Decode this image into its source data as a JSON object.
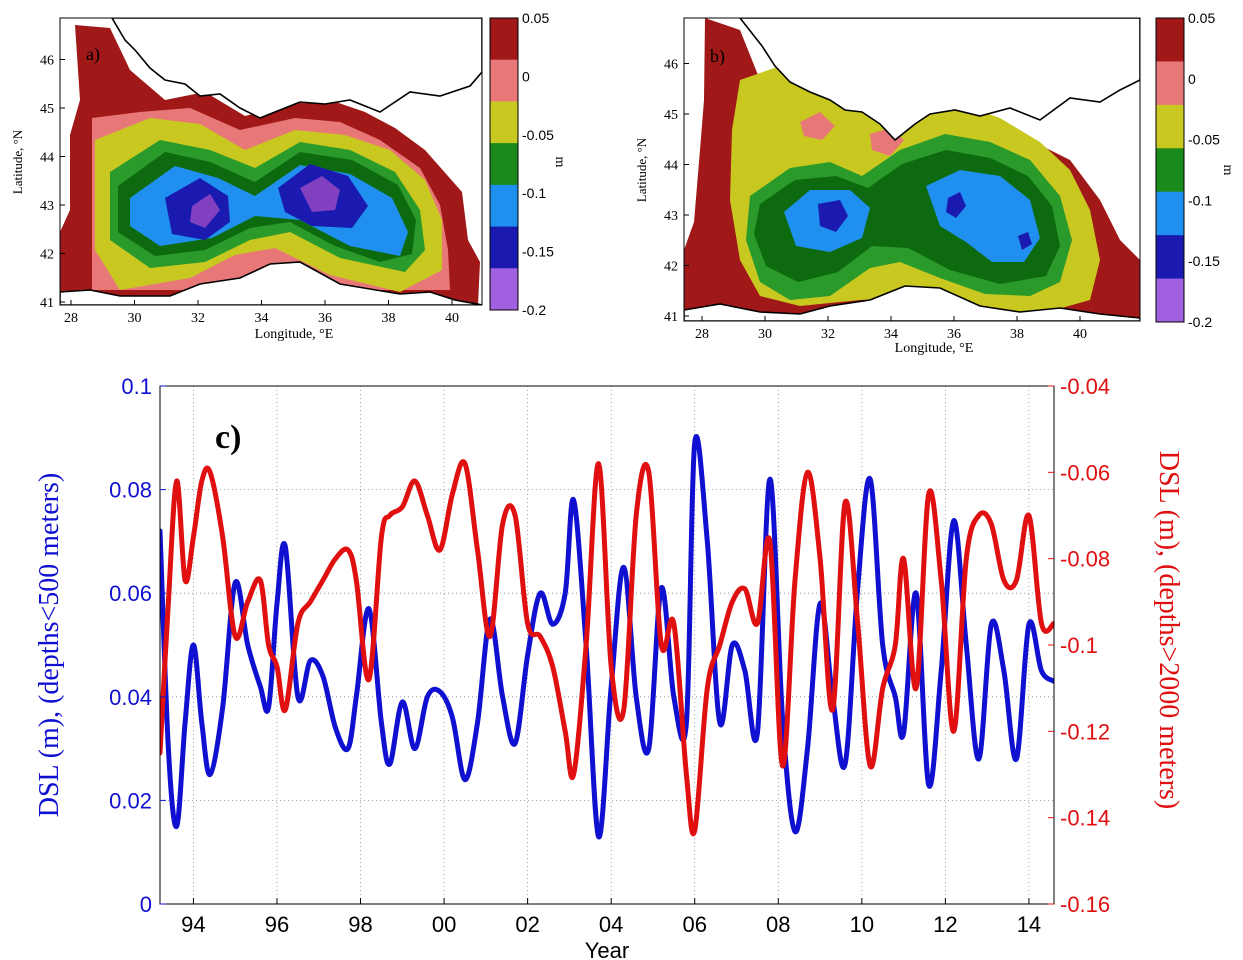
{
  "map_a": {
    "panel_label": "a)",
    "xlabel": "Longitude, °E",
    "ylabel": "Latitude, °N",
    "xticks": [
      "28",
      "30",
      "32",
      "34",
      "36",
      "38",
      "40"
    ],
    "yticks": [
      "41",
      "42",
      "43",
      "44",
      "45",
      "46"
    ],
    "colorbar_ticks": [
      "0.05",
      "0",
      "-0.05",
      "-0.1",
      "-0.15",
      "-0.2"
    ],
    "colorbar_unit": "m"
  },
  "map_b": {
    "panel_label": "b)",
    "xlabel": "Longitude, °E",
    "ylabel": "Latitude, °N",
    "xticks": [
      "28",
      "30",
      "32",
      "34",
      "36",
      "38",
      "40"
    ],
    "yticks": [
      "41",
      "42",
      "43",
      "44",
      "45",
      "46"
    ],
    "colorbar_ticks": [
      "0.05",
      "0",
      "-0.05",
      "-0.1",
      "-0.15",
      "-0.2"
    ],
    "colorbar_unit": "m"
  },
  "colorbar_colors": [
    "#a01818",
    "#e87878",
    "#c8c820",
    "#1a8a1a",
    "#2090f0",
    "#1a1ab0",
    "#a060e0"
  ],
  "map_colors": {
    "coast_red": "#a01818",
    "pink": "#e87878",
    "yellow": "#c8c820",
    "green": "#2a9a2a",
    "dark_green": "#0e6a0e",
    "blue": "#2090f0",
    "dark_blue": "#1a1ab0",
    "purple": "#8040c0",
    "land": "#ffffff"
  },
  "chart_data": {
    "type": "line",
    "panel_label": "c)",
    "xlabel": "Year",
    "ylabel_left": "DSL (m), (depths<500 meters)",
    "ylabel_right": "DSL (m), (depths>2000 meters)",
    "xlim": [
      1993.2,
      2014.6
    ],
    "ylim_left": [
      0,
      0.1
    ],
    "ylim_right": [
      -0.16,
      -0.04
    ],
    "xticks": [
      1994,
      1996,
      1998,
      2000,
      2002,
      2004,
      2006,
      2008,
      2010,
      2012,
      2014
    ],
    "xtick_labels": [
      "94",
      "96",
      "98",
      "00",
      "02",
      "04",
      "06",
      "08",
      "10",
      "12",
      "14"
    ],
    "yticks_left": [
      0,
      0.02,
      0.04,
      0.06,
      0.08,
      0.1
    ],
    "ytick_labels_left": [
      "0",
      "0.02",
      "0.04",
      "0.06",
      "0.08",
      "0.1"
    ],
    "yticks_right": [
      -0.16,
      -0.14,
      -0.12,
      -0.1,
      -0.08,
      -0.06,
      -0.04
    ],
    "ytick_labels_right": [
      "-0.16",
      "-0.14",
      "-0.12",
      "-0.1",
      "-0.08",
      "-0.06",
      "-0.04"
    ],
    "grid": true,
    "series": [
      {
        "axis": "left",
        "color": "#1010d0",
        "x": [
          1993.2,
          1993.4,
          1993.6,
          1993.8,
          1994.0,
          1994.2,
          1994.4,
          1994.7,
          1995.0,
          1995.3,
          1995.6,
          1995.8,
          1996.0,
          1996.2,
          1996.5,
          1996.8,
          1997.1,
          1997.4,
          1997.7,
          1997.9,
          1998.2,
          1998.5,
          1998.7,
          1999.0,
          1999.3,
          1999.6,
          1999.9,
          2000.2,
          2000.5,
          2000.8,
          2001.1,
          2001.4,
          2001.7,
          2002.0,
          2002.3,
          2002.6,
          2002.9,
          2003.1,
          2003.4,
          2003.7,
          2004.0,
          2004.3,
          2004.6,
          2004.9,
          2005.2,
          2005.5,
          2005.8,
          2006.0,
          2006.3,
          2006.6,
          2006.9,
          2007.2,
          2007.5,
          2007.8,
          2008.1,
          2008.4,
          2008.7,
          2009.0,
          2009.3,
          2009.6,
          2009.9,
          2010.2,
          2010.5,
          2010.8,
          2011.0,
          2011.3,
          2011.6,
          2011.9,
          2012.2,
          2012.5,
          2012.8,
          2013.1,
          2013.4,
          2013.7,
          2014.0,
          2014.3,
          2014.6
        ],
        "values": [
          0.072,
          0.03,
          0.015,
          0.035,
          0.05,
          0.035,
          0.025,
          0.038,
          0.062,
          0.05,
          0.042,
          0.038,
          0.058,
          0.069,
          0.04,
          0.047,
          0.044,
          0.034,
          0.03,
          0.04,
          0.057,
          0.035,
          0.027,
          0.039,
          0.03,
          0.04,
          0.041,
          0.036,
          0.024,
          0.035,
          0.055,
          0.04,
          0.031,
          0.048,
          0.06,
          0.054,
          0.06,
          0.078,
          0.05,
          0.013,
          0.042,
          0.065,
          0.04,
          0.03,
          0.061,
          0.04,
          0.035,
          0.089,
          0.07,
          0.035,
          0.05,
          0.045,
          0.033,
          0.082,
          0.036,
          0.014,
          0.03,
          0.058,
          0.04,
          0.027,
          0.061,
          0.082,
          0.05,
          0.04,
          0.033,
          0.06,
          0.023,
          0.045,
          0.074,
          0.05,
          0.028,
          0.054,
          0.045,
          0.028,
          0.054,
          0.045,
          0.043
        ]
      },
      {
        "axis": "right",
        "color": "#e01010",
        "x": [
          1993.2,
          1993.4,
          1993.6,
          1993.8,
          1994.0,
          1994.2,
          1994.4,
          1994.7,
          1995.0,
          1995.3,
          1995.6,
          1995.8,
          1996.0,
          1996.2,
          1996.5,
          1996.8,
          1997.1,
          1997.4,
          1997.7,
          1997.9,
          1998.2,
          1998.5,
          1998.7,
          1999.0,
          1999.3,
          1999.6,
          1999.9,
          2000.2,
          2000.5,
          2000.8,
          2001.1,
          2001.4,
          2001.7,
          2002.0,
          2002.3,
          2002.6,
          2002.9,
          2003.1,
          2003.4,
          2003.7,
          2004.0,
          2004.3,
          2004.6,
          2004.9,
          2005.2,
          2005.5,
          2005.8,
          2006.0,
          2006.3,
          2006.6,
          2006.9,
          2007.2,
          2007.5,
          2007.8,
          2008.1,
          2008.4,
          2008.7,
          2009.0,
          2009.3,
          2009.6,
          2009.9,
          2010.2,
          2010.5,
          2010.8,
          2011.0,
          2011.3,
          2011.6,
          2011.9,
          2012.2,
          2012.5,
          2012.8,
          2013.1,
          2013.4,
          2013.7,
          2014.0,
          2014.3,
          2014.6
        ],
        "values": [
          -0.125,
          -0.09,
          -0.062,
          -0.085,
          -0.075,
          -0.062,
          -0.06,
          -0.075,
          -0.098,
          -0.09,
          -0.085,
          -0.1,
          -0.105,
          -0.115,
          -0.095,
          -0.09,
          -0.085,
          -0.08,
          -0.078,
          -0.085,
          -0.108,
          -0.075,
          -0.07,
          -0.068,
          -0.062,
          -0.07,
          -0.078,
          -0.065,
          -0.058,
          -0.078,
          -0.098,
          -0.072,
          -0.07,
          -0.095,
          -0.098,
          -0.105,
          -0.12,
          -0.13,
          -0.1,
          -0.058,
          -0.105,
          -0.115,
          -0.07,
          -0.06,
          -0.1,
          -0.095,
          -0.13,
          -0.143,
          -0.11,
          -0.1,
          -0.09,
          -0.087,
          -0.095,
          -0.076,
          -0.128,
          -0.085,
          -0.06,
          -0.08,
          -0.115,
          -0.067,
          -0.095,
          -0.128,
          -0.11,
          -0.1,
          -0.08,
          -0.11,
          -0.065,
          -0.085,
          -0.12,
          -0.08,
          -0.07,
          -0.072,
          -0.085,
          -0.085,
          -0.07,
          -0.095,
          -0.095
        ]
      }
    ]
  }
}
